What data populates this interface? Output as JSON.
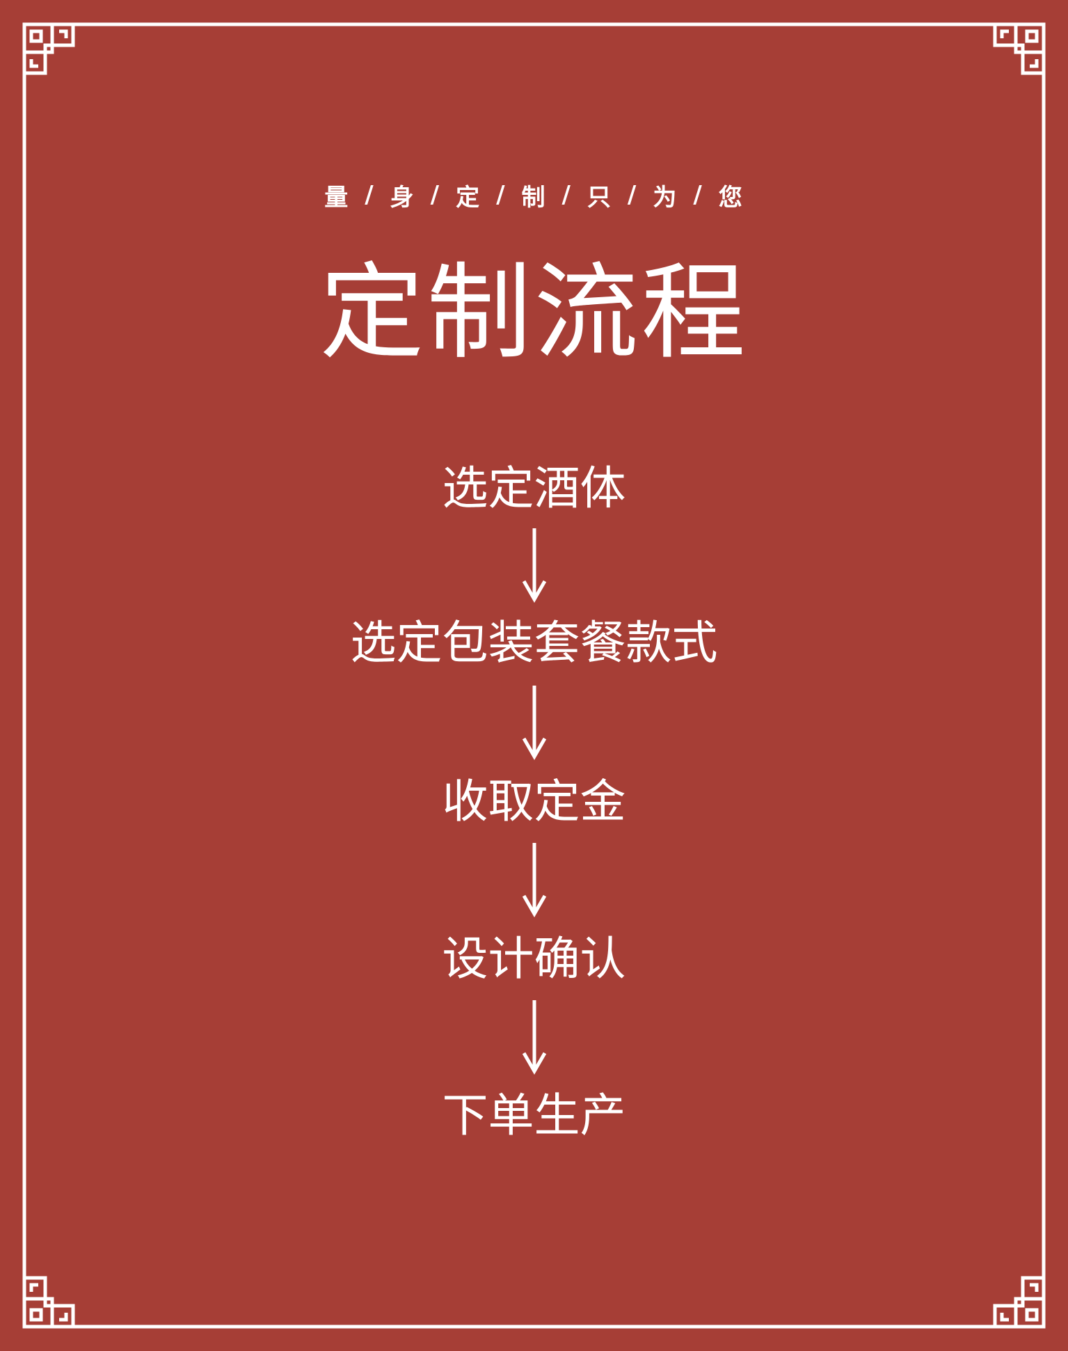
{
  "subtitle": {
    "chars": [
      "量",
      "身",
      "定",
      "制",
      "只",
      "为",
      "您"
    ],
    "separator": "/"
  },
  "title": "定制流程",
  "steps": [
    {
      "label": "选定酒体"
    },
    {
      "label": "选定包装套餐款式"
    },
    {
      "label": "收取定金"
    },
    {
      "label": "设计确认"
    },
    {
      "label": "下单生产"
    }
  ],
  "colors": {
    "background": "#a63e36",
    "foreground": "#ffffff"
  },
  "decorations": {
    "corner_ornament": "chinese-key-fret-corner",
    "arrow_icon": "arrow-down-icon"
  }
}
